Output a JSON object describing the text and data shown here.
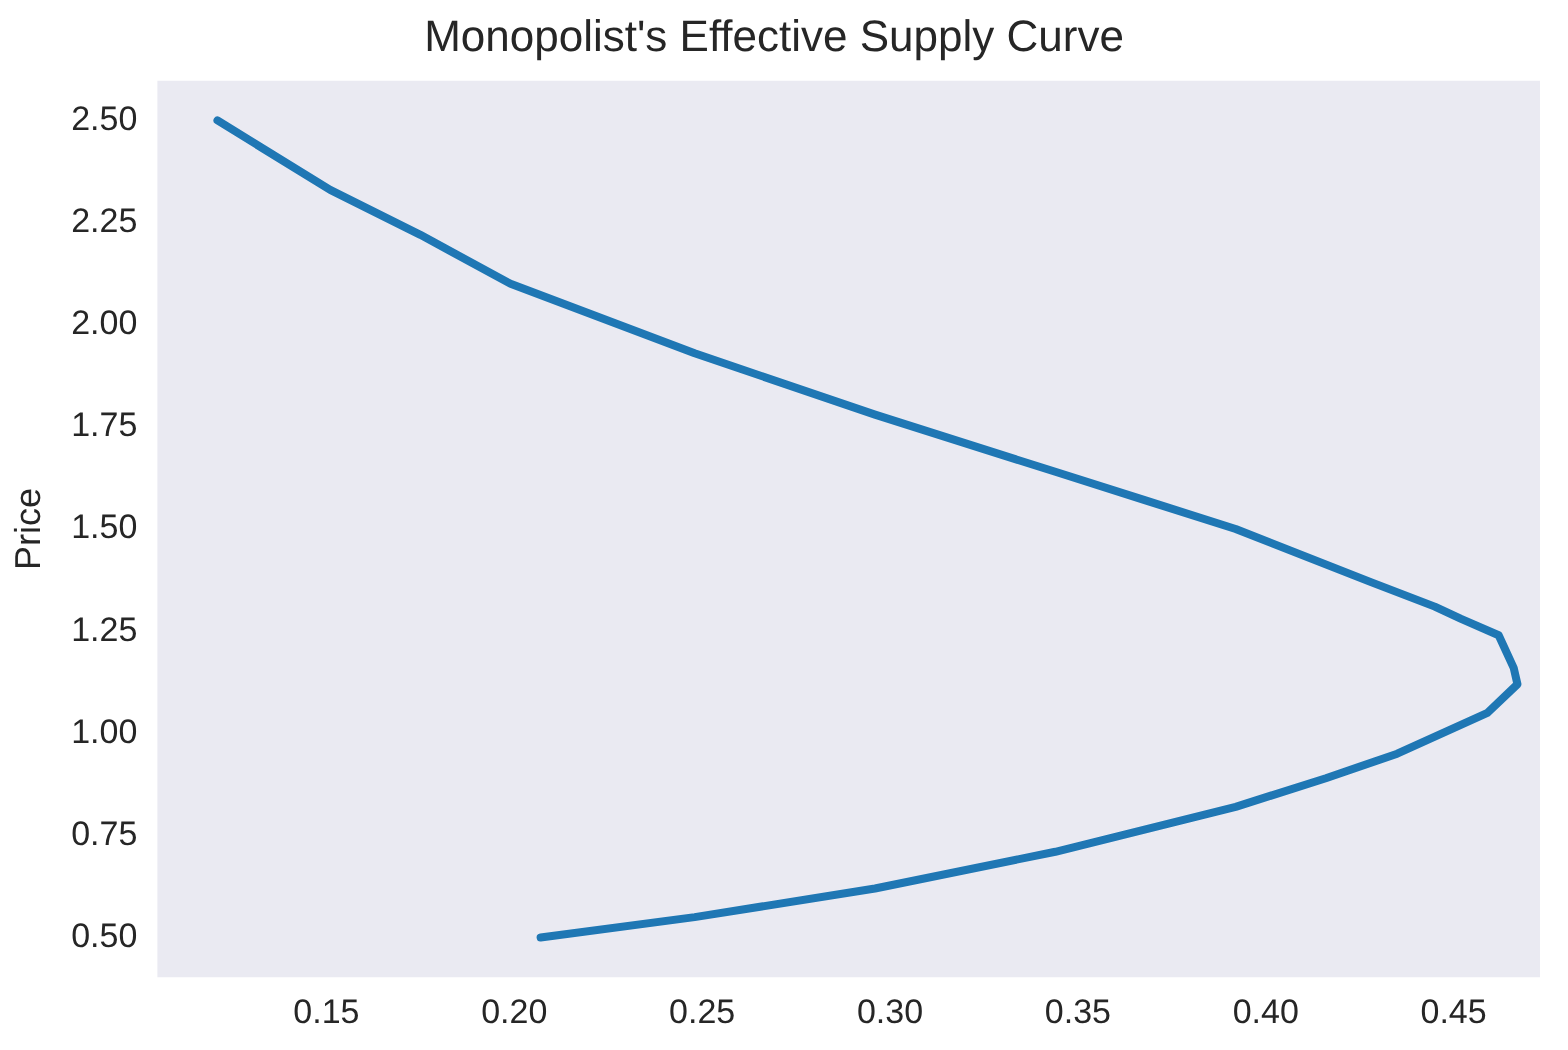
{
  "chart_data": {
    "type": "line",
    "title": "Monopolist's Effective Supply Curve",
    "ylabel": "Price",
    "x": [
      0.121,
      0.151,
      0.175,
      0.199,
      0.248,
      0.296,
      0.344,
      0.368,
      0.392,
      0.428,
      0.445,
      0.452,
      0.462,
      0.466,
      0.467,
      0.459,
      0.435,
      0.416,
      0.392,
      0.344,
      0.296,
      0.248,
      0.207
    ],
    "series": [
      {
        "color": "#1f77b4",
        "values": [
          2.5,
          2.33,
          2.22,
          2.1,
          1.93,
          1.78,
          1.64,
          1.57,
          1.5,
          1.37,
          1.31,
          1.28,
          1.24,
          1.16,
          1.12,
          1.05,
          0.95,
          0.89,
          0.82,
          0.71,
          0.62,
          0.55,
          0.5
        ]
      }
    ],
    "xlim": [
      0.105,
      0.473
    ],
    "xticks": [
      {
        "value": 0.15,
        "label": "0.15"
      },
      {
        "value": 0.2,
        "label": "0.20"
      },
      {
        "value": 0.25,
        "label": "0.25"
      },
      {
        "value": 0.3,
        "label": "0.30"
      },
      {
        "value": 0.35,
        "label": "0.35"
      },
      {
        "value": 0.4,
        "label": "0.40"
      },
      {
        "value": 0.45,
        "label": "0.45"
      }
    ],
    "ylim": [
      0.403,
      2.597
    ],
    "yticks": [
      {
        "value": 0.5,
        "label": "0.50"
      },
      {
        "value": 0.75,
        "label": "0.75"
      },
      {
        "value": 1.0,
        "label": "1.00"
      },
      {
        "value": 1.25,
        "label": "1.25"
      },
      {
        "value": 1.5,
        "label": "1.50"
      },
      {
        "value": 1.75,
        "label": "1.75"
      },
      {
        "value": 2.0,
        "label": "2.00"
      },
      {
        "value": 2.25,
        "label": "2.25"
      },
      {
        "value": 2.5,
        "label": "2.50"
      }
    ],
    "grid": false,
    "legend": false,
    "marker": "none",
    "line_style": "solid"
  }
}
